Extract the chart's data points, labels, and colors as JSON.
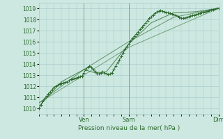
{
  "bg_color": "#cce8e0",
  "grid_color": "#aacccc",
  "line_color": "#2d6a2d",
  "marker_color": "#2d6a2d",
  "xlabel": "Pression niveau de la mer( hPa )",
  "ylim": [
    1009.5,
    1019.5
  ],
  "xlim": [
    0,
    288
  ],
  "yticks": [
    1010,
    1011,
    1012,
    1013,
    1014,
    1015,
    1016,
    1017,
    1018,
    1019
  ],
  "day_labels": [
    "Ven",
    "Sam",
    "Dim"
  ],
  "day_positions": [
    72,
    144,
    288
  ],
  "series1_x": [
    0,
    3,
    6,
    9,
    12,
    15,
    18,
    21,
    24,
    27,
    30,
    33,
    36,
    39,
    42,
    45,
    48,
    51,
    54,
    57,
    60,
    63,
    66,
    69,
    72,
    75,
    78,
    81,
    84,
    87,
    90,
    93,
    96,
    99,
    102,
    105,
    108,
    111,
    114,
    117,
    120,
    123,
    126,
    129,
    132,
    135,
    138,
    141,
    144,
    147,
    150,
    153,
    156,
    159,
    162,
    165,
    168,
    171,
    174,
    177,
    180,
    183,
    186,
    189,
    192,
    195,
    198,
    201,
    204,
    207,
    210,
    213,
    216,
    219,
    222,
    225,
    228,
    231,
    234,
    237,
    240,
    243,
    246,
    249,
    252,
    255,
    258,
    261,
    264,
    267,
    270,
    273,
    276,
    279,
    282,
    285,
    288
  ],
  "series1_y": [
    1010.0,
    1010.3,
    1010.6,
    1010.9,
    1011.1,
    1011.3,
    1011.5,
    1011.7,
    1011.9,
    1012.0,
    1012.1,
    1012.2,
    1012.25,
    1012.3,
    1012.35,
    1012.4,
    1012.5,
    1012.6,
    1012.65,
    1012.7,
    1012.75,
    1012.8,
    1012.85,
    1012.9,
    1013.2,
    1013.5,
    1013.7,
    1013.8,
    1013.7,
    1013.5,
    1013.3,
    1013.15,
    1013.1,
    1013.2,
    1013.3,
    1013.2,
    1013.1,
    1013.05,
    1013.1,
    1013.2,
    1013.5,
    1013.8,
    1014.1,
    1014.4,
    1014.7,
    1015.0,
    1015.3,
    1015.55,
    1015.8,
    1016.05,
    1016.3,
    1016.5,
    1016.7,
    1016.9,
    1017.1,
    1017.3,
    1017.5,
    1017.7,
    1017.9,
    1018.1,
    1018.25,
    1018.4,
    1018.55,
    1018.7,
    1018.75,
    1018.8,
    1018.75,
    1018.7,
    1018.65,
    1018.6,
    1018.55,
    1018.5,
    1018.45,
    1018.4,
    1018.3,
    1018.2,
    1018.15,
    1018.1,
    1018.15,
    1018.2,
    1018.25,
    1018.3,
    1018.35,
    1018.4,
    1018.45,
    1018.5,
    1018.55,
    1018.6,
    1018.65,
    1018.7,
    1018.75,
    1018.8,
    1018.85,
    1018.9,
    1018.95,
    1019.0,
    1019.0
  ],
  "series2_x": [
    0,
    36,
    72,
    90,
    108,
    144,
    180,
    216,
    252,
    288
  ],
  "series2_y": [
    1010.2,
    1012.4,
    1013.5,
    1013.2,
    1013.3,
    1015.8,
    1017.7,
    1018.6,
    1018.7,
    1019.0
  ],
  "series3_x": [
    0,
    72,
    144,
    216,
    288
  ],
  "series3_y": [
    1010.5,
    1013.5,
    1016.0,
    1018.2,
    1019.0
  ],
  "series4_x": [
    0,
    144,
    288
  ],
  "series4_y": [
    1010.5,
    1015.5,
    1019.0
  ]
}
